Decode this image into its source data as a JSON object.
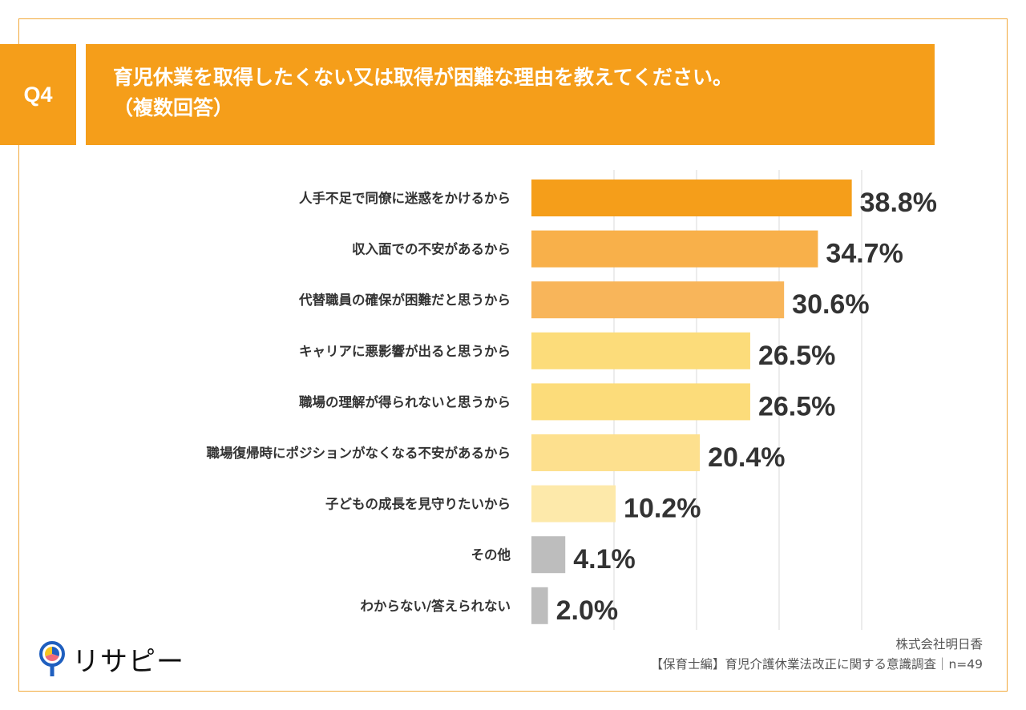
{
  "header": {
    "question_no": "Q4",
    "title_line1": "育児休業を取得したくない又は取得が困難な理由を教えてください。",
    "title_line2": "（複数回答）"
  },
  "chart_data": {
    "type": "bar",
    "orientation": "horizontal",
    "categories": [
      "人手不足で同僚に迷惑をかけるから",
      "収入面での不安があるから",
      "代替職員の確保が困難だと思うから",
      "キャリアに悪影響が出ると思うから",
      "職場の理解が得られないと思うから",
      "職場復帰時にポジションがなくなる不安があるから",
      "子どもの成長を見守りたいから",
      "その他",
      "わからない/答えられない"
    ],
    "values": [
      38.8,
      34.7,
      30.6,
      26.5,
      26.5,
      20.4,
      10.2,
      4.1,
      2.0
    ],
    "value_labels": [
      "38.8%",
      "34.7%",
      "30.6%",
      "26.5%",
      "26.5%",
      "20.4%",
      "10.2%",
      "4.1%",
      "2.0%"
    ],
    "colors": [
      "#f59e1a",
      "#f8b04a",
      "#f8b55a",
      "#fcdc7a",
      "#fcdc7a",
      "#fde08e",
      "#fde9aa",
      "#bdbdbd",
      "#bdbdbd"
    ],
    "xlim": [
      0,
      40
    ],
    "grid": true,
    "gridline_step": 10,
    "unit": "%"
  },
  "footer": {
    "company": "株式会社明日香",
    "survey": "【保育士編】育児介護休業法改正に関する意識調査｜n=49"
  },
  "logo": {
    "text": "リサピー"
  },
  "colors": {
    "accent": "#f59e1a",
    "frame": "#f2a93b"
  }
}
